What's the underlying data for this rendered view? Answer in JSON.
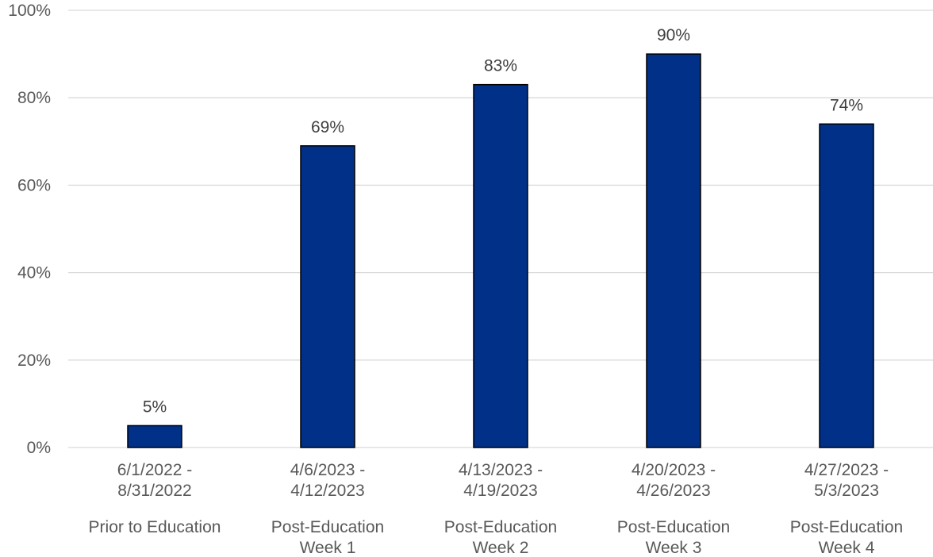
{
  "chart_data": {
    "type": "bar",
    "categories": [
      {
        "dates": [
          "6/1/2022 -",
          "8/31/2022"
        ],
        "phase": [
          "Prior to Education"
        ]
      },
      {
        "dates": [
          "4/6/2023 -",
          "4/12/2023"
        ],
        "phase": [
          "Post-Education",
          "Week 1"
        ]
      },
      {
        "dates": [
          "4/13/2023 -",
          "4/19/2023"
        ],
        "phase": [
          "Post-Education",
          "Week 2"
        ]
      },
      {
        "dates": [
          "4/20/2023 -",
          "4/26/2023"
        ],
        "phase": [
          "Post-Education",
          "Week 3"
        ]
      },
      {
        "dates": [
          "4/27/2023 -",
          "5/3/2023"
        ],
        "phase": [
          "Post-Education",
          "Week 4"
        ]
      }
    ],
    "values": [
      5,
      69,
      83,
      90,
      74
    ],
    "data_labels": [
      "5%",
      "69%",
      "83%",
      "90%",
      "74%"
    ],
    "y_ticks": [
      {
        "value": 0,
        "label": "0%"
      },
      {
        "value": 20,
        "label": "20%"
      },
      {
        "value": 40,
        "label": "40%"
      },
      {
        "value": 60,
        "label": "60%"
      },
      {
        "value": 80,
        "label": "80%"
      },
      {
        "value": 100,
        "label": "100%"
      }
    ],
    "ylim": [
      0,
      100
    ],
    "grid": true,
    "title": "",
    "xlabel": "",
    "ylabel": "",
    "bar_color": "#003087",
    "bar_outline_color": "#000000",
    "grid_color": "#d9d9d9",
    "text_color": "#595959"
  }
}
